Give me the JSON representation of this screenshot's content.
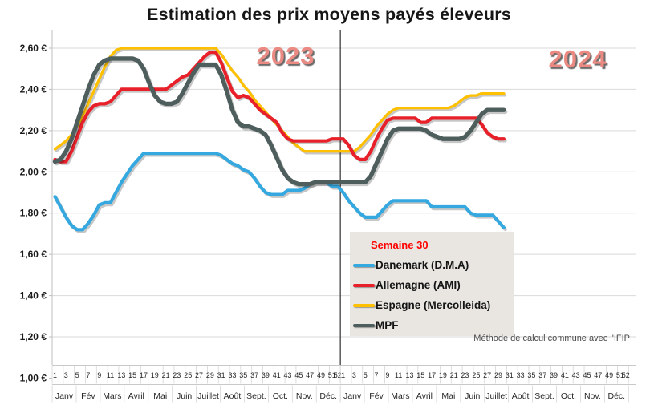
{
  "title": "Estimation des prix moyens payés éleveurs",
  "legend": {
    "header": "Semaine 30"
  },
  "footnote": "Méthode de calcul commune avec l'IFIP",
  "colors": {
    "grid": "#D9D9D9",
    "axis": "#BFBFBF",
    "band_line": "#C9C9C9",
    "divider": "#3F3F3F",
    "tick_text": "#262626",
    "value_text": "#1A1A1A",
    "year_label": "#EA8A82",
    "legend_bg": "#E9E6E2",
    "semaine_text": "#FF0000",
    "line_shadow": "rgba(0,0,0,0.22)"
  },
  "chart_data": {
    "type": "line",
    "title": "Estimation des prix moyens payés éleveurs",
    "annotation": "Semaine 30",
    "footnote": "Méthode de calcul commune avec l'IFIP",
    "grid": true,
    "legend_position": "center-right box",
    "y_axis": {
      "min": 1.0,
      "max": 2.6,
      "step": 0.2,
      "unit": "€",
      "tick_labels": [
        "2,60 €",
        "2,40 €",
        "2,20 €",
        "2,00 €",
        "1,80 €",
        "1,60 €",
        "1,40 €",
        "1,20 €",
        "1,00 €"
      ]
    },
    "x_axis": {
      "weeks_per_year": 52,
      "years": [
        {
          "label": "2023",
          "week_ticks": [
            "1",
            "3",
            "5",
            "7",
            "9",
            "11",
            "13",
            "15",
            "17",
            "19",
            "21",
            "23",
            "25",
            "27",
            "29",
            "31",
            "33",
            "35",
            "37",
            "39",
            "41",
            "43",
            "45",
            "47",
            "49",
            "51",
            "52"
          ],
          "months": [
            "Janv",
            "Fév",
            "Mars",
            "Avril",
            "Mai",
            "Juin",
            "Juillet",
            "Août",
            "Sept.",
            "Oct.",
            "Nov.",
            "Déc."
          ]
        },
        {
          "label": "2024",
          "week_ticks": [
            "1",
            "3",
            "5",
            "7",
            "9",
            "11",
            "13",
            "15",
            "17",
            "19",
            "21",
            "23",
            "25",
            "27",
            "29",
            "31",
            "33",
            "35",
            "37",
            "39",
            "41",
            "43",
            "45",
            "47",
            "49",
            "51",
            "52"
          ],
          "months": [
            "Janv",
            "Fév",
            "Mars",
            "Avril",
            "Mai",
            "Juin",
            "Juillet",
            "Août",
            "Sept.",
            "Oct.",
            "Nov.",
            "Déc."
          ]
        }
      ]
    },
    "series": [
      {
        "name": "Danemark (D.M.A)",
        "color": "#35A8E0",
        "line_width": 4.2,
        "values_2023": [
          1.88,
          1.83,
          1.78,
          1.74,
          1.72,
          1.72,
          1.75,
          1.79,
          1.84,
          1.85,
          1.85,
          1.9,
          1.95,
          1.99,
          2.03,
          2.06,
          2.09,
          2.09,
          2.09,
          2.09,
          2.09,
          2.09,
          2.09,
          2.09,
          2.09,
          2.09,
          2.09,
          2.09,
          2.09,
          2.09,
          2.08,
          2.06,
          2.04,
          2.03,
          2.01,
          2.0,
          1.97,
          1.93,
          1.9,
          1.89,
          1.89,
          1.89,
          1.91,
          1.91,
          1.91,
          1.92,
          1.94,
          1.95,
          1.95,
          1.95,
          1.93,
          1.93
        ],
        "values_2024": [
          1.9,
          1.86,
          1.83,
          1.8,
          1.78,
          1.78,
          1.78,
          1.81,
          1.84,
          1.86,
          1.86,
          1.86,
          1.86,
          1.86,
          1.86,
          1.86,
          1.83,
          1.83,
          1.83,
          1.83,
          1.83,
          1.83,
          1.83,
          1.8,
          1.79,
          1.79,
          1.79,
          1.79,
          1.76,
          1.73
        ]
      },
      {
        "name": "Allemagne (AMI)",
        "color": "#E8202A",
        "line_width": 4.2,
        "values_2023": [
          2.06,
          2.05,
          2.05,
          2.1,
          2.17,
          2.24,
          2.29,
          2.32,
          2.33,
          2.33,
          2.34,
          2.37,
          2.4,
          2.4,
          2.4,
          2.4,
          2.4,
          2.4,
          2.4,
          2.4,
          2.4,
          2.42,
          2.44,
          2.46,
          2.47,
          2.5,
          2.53,
          2.56,
          2.58,
          2.58,
          2.53,
          2.46,
          2.39,
          2.36,
          2.37,
          2.36,
          2.33,
          2.3,
          2.28,
          2.26,
          2.24,
          2.19,
          2.16,
          2.15,
          2.15,
          2.15,
          2.15,
          2.15,
          2.15,
          2.15,
          2.16,
          2.16
        ],
        "values_2024": [
          2.16,
          2.13,
          2.08,
          2.06,
          2.06,
          2.1,
          2.16,
          2.21,
          2.25,
          2.26,
          2.26,
          2.26,
          2.26,
          2.26,
          2.24,
          2.24,
          2.26,
          2.26,
          2.26,
          2.26,
          2.26,
          2.26,
          2.26,
          2.26,
          2.26,
          2.23,
          2.19,
          2.17,
          2.16,
          2.16
        ]
      },
      {
        "name": "Espagne (Mercolleida)",
        "color": "#FFC000",
        "line_width": 3.3,
        "values_2023": [
          2.11,
          2.13,
          2.15,
          2.18,
          2.22,
          2.27,
          2.33,
          2.39,
          2.45,
          2.51,
          2.56,
          2.59,
          2.6,
          2.6,
          2.6,
          2.6,
          2.6,
          2.6,
          2.6,
          2.6,
          2.6,
          2.6,
          2.6,
          2.6,
          2.6,
          2.6,
          2.6,
          2.6,
          2.6,
          2.6,
          2.57,
          2.53,
          2.49,
          2.46,
          2.42,
          2.39,
          2.35,
          2.32,
          2.29,
          2.26,
          2.23,
          2.2,
          2.17,
          2.14,
          2.12,
          2.1,
          2.1,
          2.1,
          2.1,
          2.1,
          2.1,
          2.1
        ],
        "values_2024": [
          2.1,
          2.1,
          2.1,
          2.12,
          2.15,
          2.18,
          2.22,
          2.25,
          2.28,
          2.3,
          2.31,
          2.31,
          2.31,
          2.31,
          2.31,
          2.31,
          2.31,
          2.31,
          2.31,
          2.31,
          2.32,
          2.34,
          2.36,
          2.37,
          2.37,
          2.38,
          2.38,
          2.38,
          2.38,
          2.38
        ]
      },
      {
        "name": "MPF",
        "color": "#4E5E5D",
        "line_width": 5.4,
        "values_2023": [
          2.05,
          2.06,
          2.1,
          2.16,
          2.24,
          2.32,
          2.4,
          2.47,
          2.52,
          2.54,
          2.55,
          2.55,
          2.55,
          2.55,
          2.55,
          2.54,
          2.5,
          2.43,
          2.37,
          2.34,
          2.33,
          2.33,
          2.34,
          2.38,
          2.43,
          2.48,
          2.52,
          2.52,
          2.52,
          2.52,
          2.47,
          2.39,
          2.3,
          2.24,
          2.22,
          2.22,
          2.21,
          2.2,
          2.18,
          2.13,
          2.07,
          2.01,
          1.97,
          1.95,
          1.94,
          1.94,
          1.94,
          1.95,
          1.95,
          1.95,
          1.95,
          1.95
        ],
        "values_2024": [
          1.95,
          1.95,
          1.95,
          1.95,
          1.95,
          1.98,
          2.04,
          2.1,
          2.16,
          2.2,
          2.21,
          2.21,
          2.21,
          2.21,
          2.21,
          2.2,
          2.18,
          2.17,
          2.16,
          2.16,
          2.16,
          2.16,
          2.17,
          2.2,
          2.24,
          2.28,
          2.3,
          2.3,
          2.3,
          2.3
        ]
      }
    ]
  }
}
